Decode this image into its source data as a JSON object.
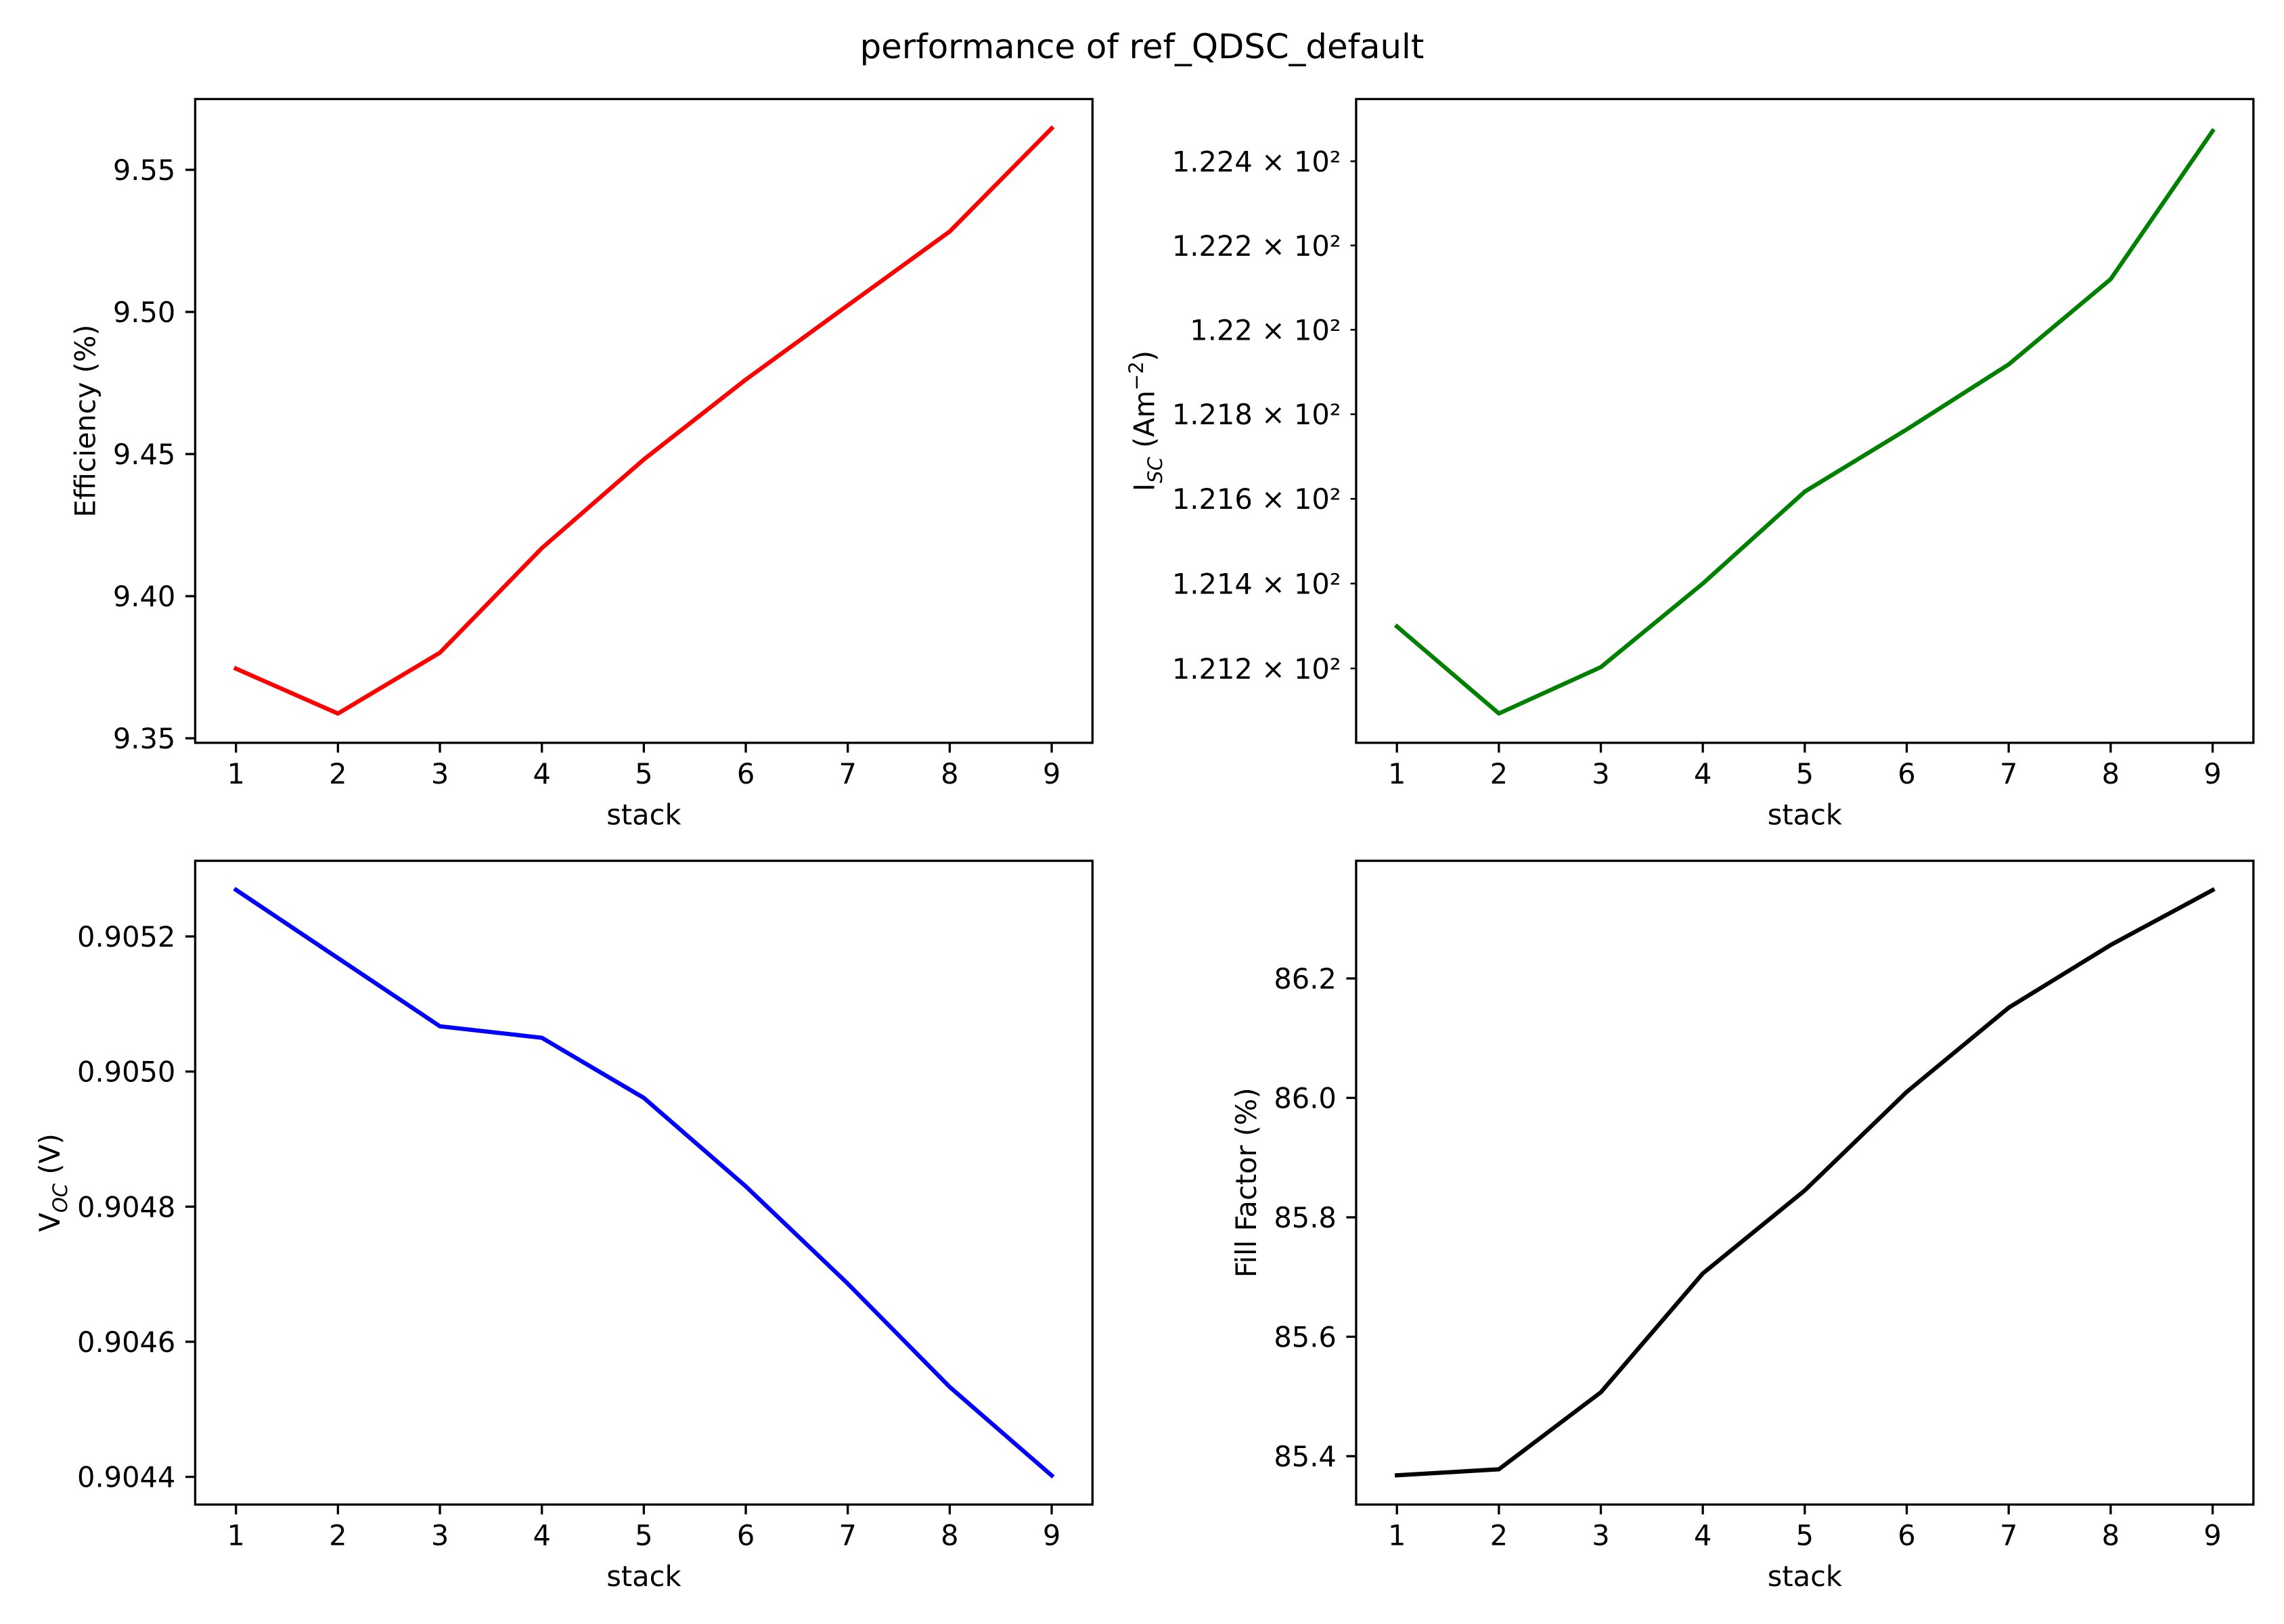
{
  "figure": {
    "title": "performance of ref_QDSC_default"
  },
  "chart_data": [
    {
      "type": "line",
      "x": [
        1,
        2,
        3,
        4,
        5,
        6,
        7,
        8,
        9
      ],
      "series": [
        {
          "values": [
            9.3745,
            9.3587,
            9.3801,
            9.4169,
            9.4481,
            9.4762,
            9.5023,
            9.5283,
            9.5646
          ],
          "color": "#ff0000"
        }
      ],
      "xlabel": "stack",
      "ylabel": [
        {
          "text": "Efficiency (%)"
        }
      ],
      "xticks": [
        1,
        2,
        3,
        4,
        5,
        6,
        7,
        8,
        9
      ],
      "xtick_labels": [
        "1",
        "2",
        "3",
        "4",
        "5",
        "6",
        "7",
        "8",
        "9"
      ],
      "yticks": [
        9.35,
        9.4,
        9.45,
        9.5,
        9.55
      ],
      "ytick_labels": [
        "9.35",
        "9.40",
        "9.45",
        "9.50",
        "9.55"
      ],
      "xlim": [
        0.6,
        9.4
      ],
      "ylim": [
        9.3484,
        9.5749
      ],
      "yscale": "linear",
      "grid": false,
      "legend": "none"
    },
    {
      "type": "line",
      "x": [
        1,
        2,
        3,
        4,
        5,
        6,
        7,
        8,
        9
      ],
      "series": [
        {
          "values": [
            121.299,
            121.094,
            121.203,
            121.4,
            121.617,
            121.764,
            121.918,
            122.12,
            122.472
          ],
          "color": "#008000"
        }
      ],
      "xlabel": "stack",
      "ylabel": [
        {
          "text": "I"
        },
        {
          "text": "SC",
          "style": "subscript"
        },
        {
          "text": " (Am"
        },
        {
          "text": "−2",
          "style": "superscript"
        },
        {
          "text": ")"
        }
      ],
      "xticks": [
        1,
        2,
        3,
        4,
        5,
        6,
        7,
        8,
        9
      ],
      "xtick_labels": [
        "1",
        "2",
        "3",
        "4",
        "5",
        "6",
        "7",
        "8",
        "9"
      ],
      "yticks": [
        121.2,
        121.4,
        121.6,
        121.8,
        122.0,
        122.2,
        122.4
      ],
      "ytick_labels": [
        "1.212 × 10²",
        "1.214 × 10²",
        "1.216 × 10²",
        "1.218 × 10²",
        "1.22 × 10²",
        "1.222 × 10²",
        "1.224 × 10²"
      ],
      "xlim": [
        0.6,
        9.4
      ],
      "ylim": [
        121.025,
        122.548
      ],
      "yscale": "log",
      "grid": false,
      "legend": "none"
    },
    {
      "type": "line",
      "x": [
        1,
        2,
        3,
        4,
        5,
        6,
        7,
        8,
        9
      ],
      "series": [
        {
          "values": [
            0.905269,
            0.905168,
            0.905067,
            0.90505,
            0.904961,
            0.90483,
            0.904686,
            0.904533,
            0.904402
          ],
          "color": "#0000ff"
        }
      ],
      "xlabel": "stack",
      "ylabel": [
        {
          "text": "V"
        },
        {
          "text": "OC",
          "style": "subscript"
        },
        {
          "text": " (V)"
        }
      ],
      "xticks": [
        1,
        2,
        3,
        4,
        5,
        6,
        7,
        8,
        9
      ],
      "xtick_labels": [
        "1",
        "2",
        "3",
        "4",
        "5",
        "6",
        "7",
        "8",
        "9"
      ],
      "yticks": [
        0.9044,
        0.9046,
        0.9048,
        0.905,
        0.9052
      ],
      "ytick_labels": [
        "0.9044",
        "0.9046",
        "0.9048",
        "0.9050",
        "0.9052"
      ],
      "xlim": [
        0.6,
        9.4
      ],
      "ylim": [
        0.904359,
        0.905312
      ],
      "yscale": "linear",
      "grid": false,
      "legend": "none"
    },
    {
      "type": "line",
      "x": [
        1,
        2,
        3,
        4,
        5,
        6,
        7,
        8,
        9
      ],
      "series": [
        {
          "values": [
            85.368,
            85.378,
            85.507,
            85.706,
            85.845,
            86.01,
            86.151,
            86.256,
            86.348
          ],
          "color": "#000000"
        }
      ],
      "xlabel": "stack",
      "ylabel": [
        {
          "text": "Fill Factor (%)"
        }
      ],
      "xticks": [
        1,
        2,
        3,
        4,
        5,
        6,
        7,
        8,
        9
      ],
      "xtick_labels": [
        "1",
        "2",
        "3",
        "4",
        "5",
        "6",
        "7",
        "8",
        "9"
      ],
      "yticks": [
        85.4,
        85.6,
        85.8,
        86.0,
        86.2
      ],
      "ytick_labels": [
        "85.4",
        "85.6",
        "85.8",
        "86.0",
        "86.2"
      ],
      "xlim": [
        0.6,
        9.4
      ],
      "ylim": [
        85.319,
        86.397
      ],
      "yscale": "linear",
      "grid": false,
      "legend": "none"
    }
  ]
}
